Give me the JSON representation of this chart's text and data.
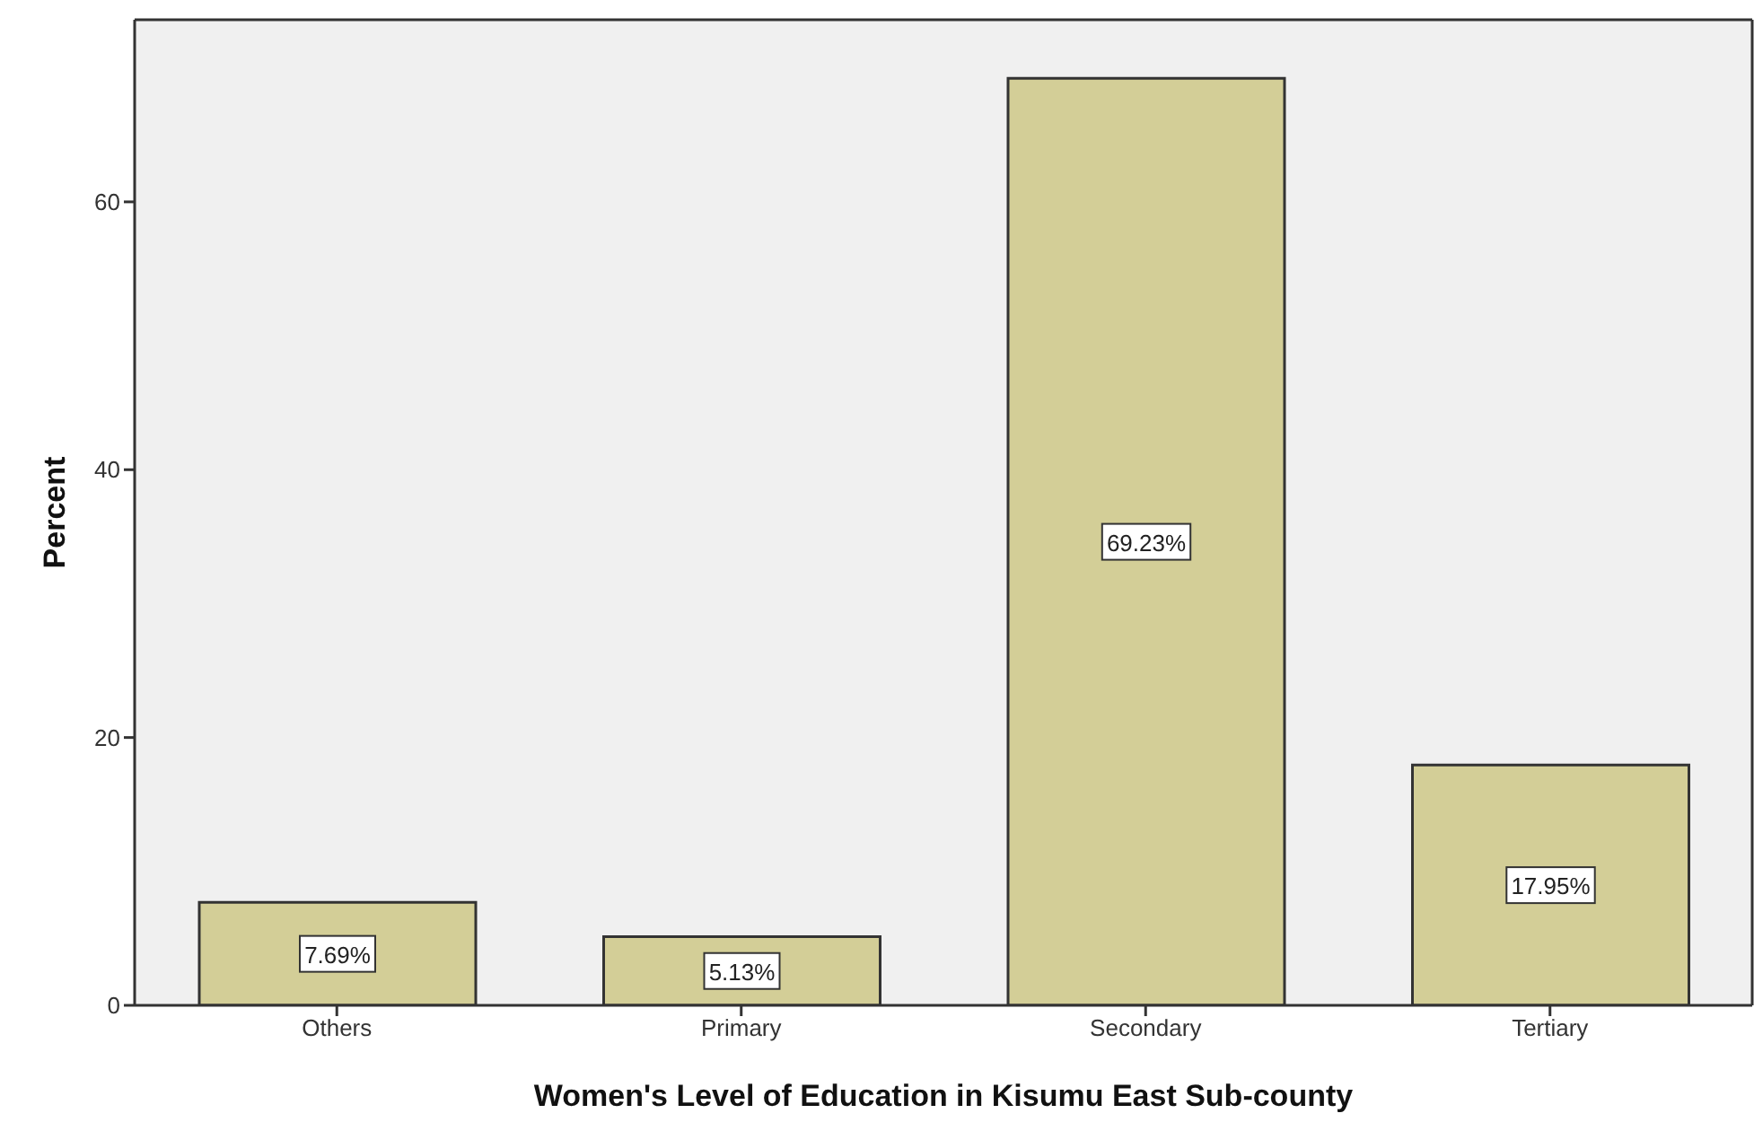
{
  "chart_data": {
    "type": "bar",
    "xlabel": "Women's Level of Education in Kisumu East Sub-county",
    "ylabel": "Percent",
    "categories": [
      "Others",
      "Primary",
      "Secondary",
      "Tertiary"
    ],
    "values": [
      7.69,
      5.13,
      69.23,
      17.95
    ],
    "value_labels": [
      "7.69%",
      "5.13%",
      "69.23%",
      "17.95%"
    ],
    "color": "#d3ce97",
    "ylim": [
      0,
      73.6
    ],
    "yticks": [
      0,
      20,
      40,
      60
    ],
    "grid": false
  }
}
